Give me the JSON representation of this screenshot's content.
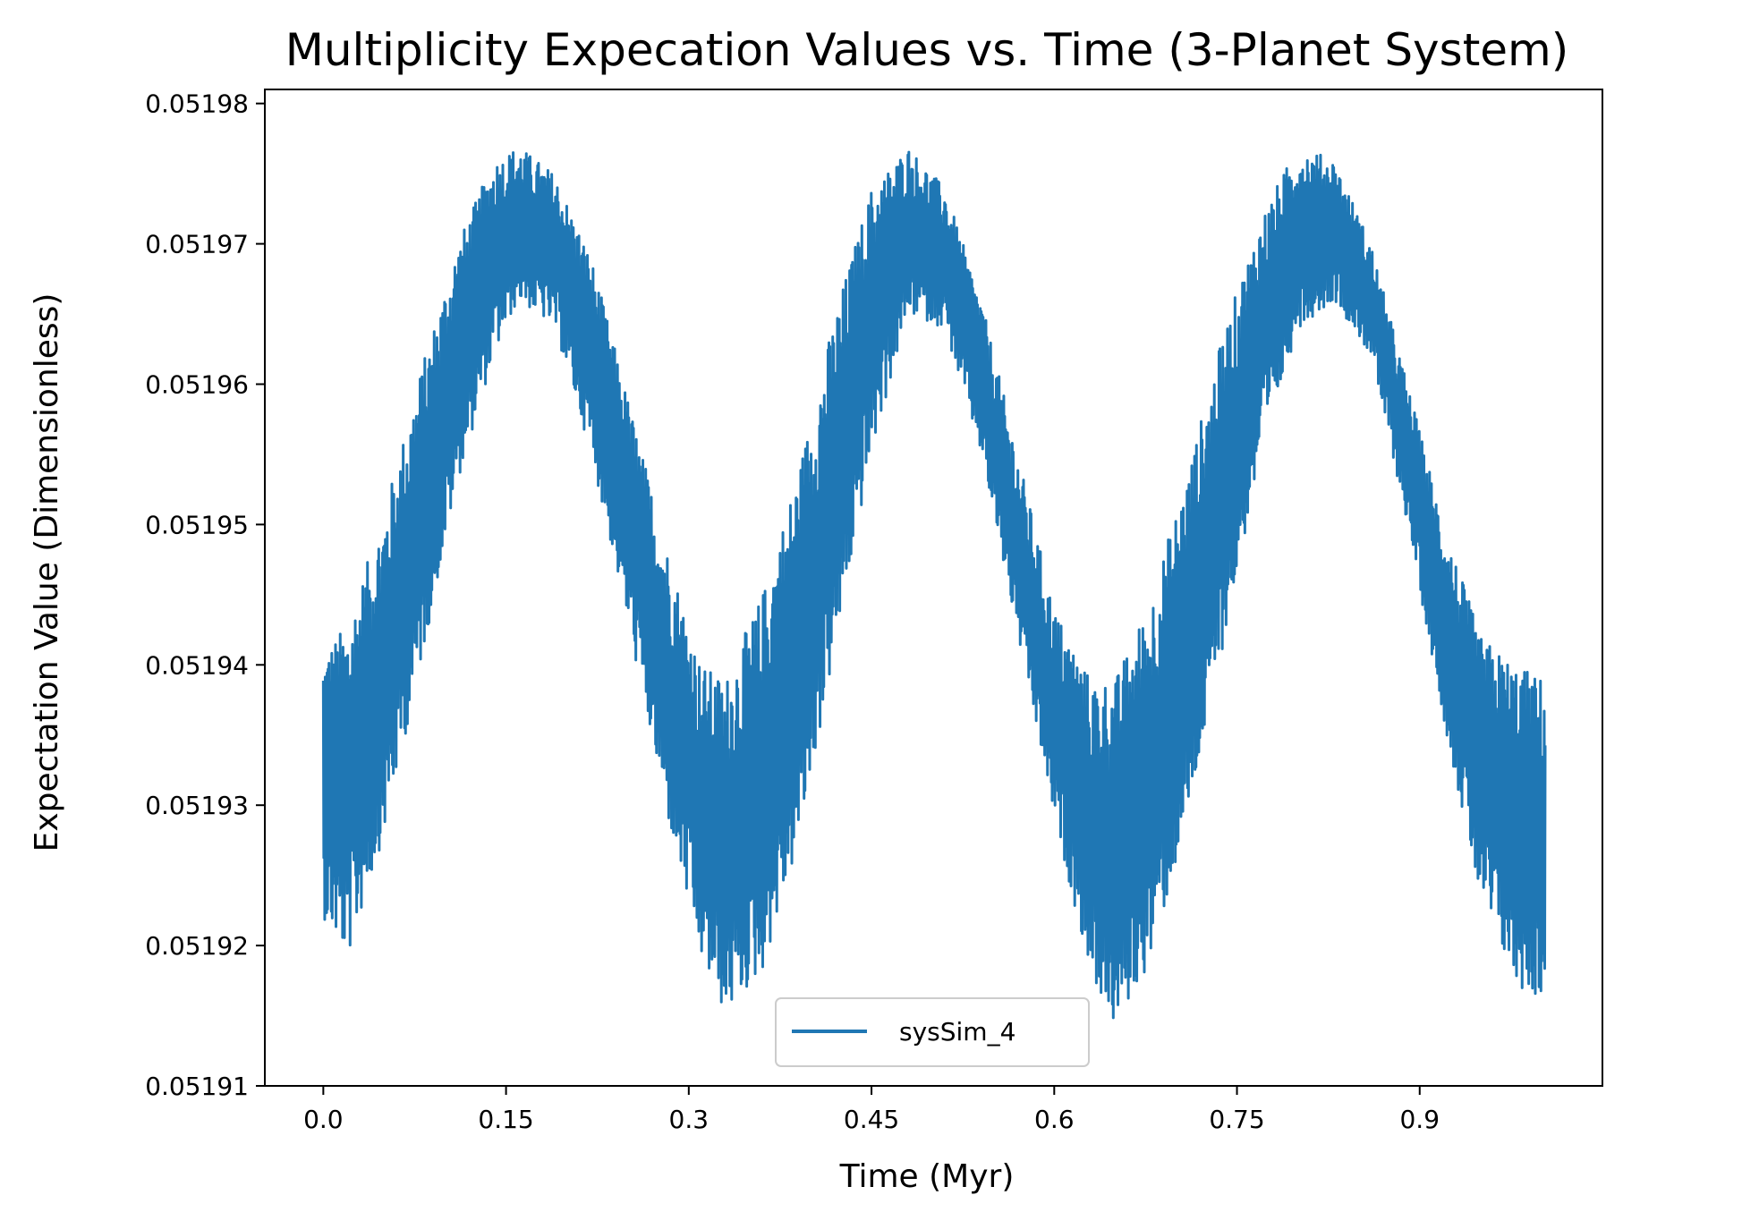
{
  "chart_data": {
    "type": "line",
    "title": "Multiplicity Expecation Values vs. Time (3-Planet System)",
    "xlabel": "Time (Myr)",
    "ylabel": "Expectation Value (Dimensionless)",
    "xlim": [
      -0.048,
      1.05
    ],
    "ylim": [
      0.05191,
      0.051981
    ],
    "xticks": [
      0.0,
      0.15,
      0.3,
      0.45,
      0.6,
      0.75,
      0.9
    ],
    "xtick_labels": [
      "0.0",
      "0.15",
      "0.3",
      "0.45",
      "0.6",
      "0.75",
      "0.9"
    ],
    "yticks": [
      0.05191,
      0.05192,
      0.05193,
      0.05194,
      0.05195,
      0.05196,
      0.05197,
      0.05198
    ],
    "ytick_labels": [
      "0.05191",
      "0.05192",
      "0.05193",
      "0.05194",
      "0.05195",
      "0.05196",
      "0.05197",
      "0.05198"
    ],
    "grid": false,
    "legend": {
      "position": "lower-center"
    },
    "series": [
      {
        "name": "sysSim_4",
        "color": "#1f77b4",
        "x_range": [
          0.0,
          1.003
        ],
        "envelope": {
          "x": [
            0.0,
            0.02,
            0.05,
            0.08,
            0.11,
            0.14,
            0.16,
            0.19,
            0.22,
            0.25,
            0.28,
            0.31,
            0.33,
            0.36,
            0.39,
            0.42,
            0.45,
            0.48,
            0.51,
            0.54,
            0.57,
            0.6,
            0.63,
            0.65,
            0.68,
            0.71,
            0.74,
            0.77,
            0.8,
            0.83,
            0.86,
            0.89,
            0.92,
            0.95,
            0.98,
            1.003
          ],
          "upper": [
            0.051941,
            0.051943,
            0.051951,
            0.051961,
            0.05197,
            0.051976,
            0.051977,
            0.051975,
            0.051969,
            0.051959,
            0.051949,
            0.05194,
            0.051939,
            0.051945,
            0.051954,
            0.051965,
            0.051974,
            0.051977,
            0.051974,
            0.051966,
            0.051955,
            0.051944,
            0.051939,
            0.051939,
            0.051945,
            0.051954,
            0.051964,
            0.051972,
            0.051977,
            0.051976,
            0.05197,
            0.05196,
            0.05195,
            0.051942,
            0.05194,
            0.051939
          ],
          "lower": [
            0.051922,
            0.051919,
            0.051928,
            0.05194,
            0.051953,
            0.051962,
            0.051966,
            0.051964,
            0.051955,
            0.051943,
            0.05193,
            0.051919,
            0.051915,
            0.051918,
            0.051927,
            0.051941,
            0.051955,
            0.051965,
            0.051964,
            0.051955,
            0.051942,
            0.051929,
            0.051918,
            0.051914,
            0.051919,
            0.051929,
            0.051942,
            0.051955,
            0.051964,
            0.051966,
            0.051962,
            0.05195,
            0.051936,
            0.051923,
            0.051917,
            0.051916
          ]
        }
      }
    ]
  }
}
